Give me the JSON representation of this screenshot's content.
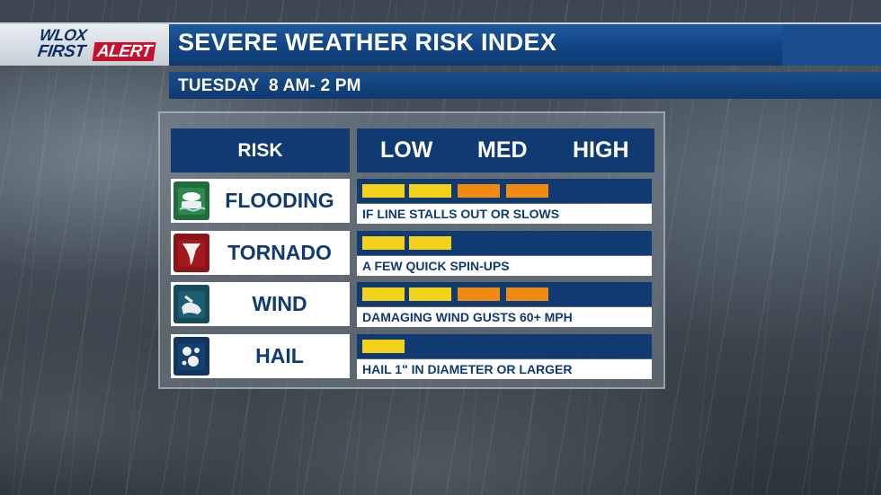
{
  "logo": {
    "wlox": "WLOX",
    "first": "FIRST",
    "alert": "ALERT"
  },
  "header": {
    "title": "SEVERE WEATHER RISK INDEX",
    "subtitle": "TUESDAY  8 AM- 2 PM"
  },
  "table": {
    "risk_header": "RISK",
    "levels": [
      "LOW",
      "MED",
      "HIGH"
    ],
    "colors": {
      "low": "#f2d21b",
      "med": "#f08a10",
      "bar_bg": "#103b72",
      "header_bg": "#103b72"
    },
    "rows": [
      {
        "label": "FLOODING",
        "icon": "flood-icon",
        "level_segments": 4,
        "description": "IF LINE STALLS OUT OR SLOWS"
      },
      {
        "label": "TORNADO",
        "icon": "tornado-icon",
        "level_segments": 2,
        "description": "A FEW QUICK SPIN-UPS"
      },
      {
        "label": "WIND",
        "icon": "wind-icon",
        "level_segments": 4,
        "description": "DAMAGING WIND GUSTS 60+ MPH"
      },
      {
        "label": "HAIL",
        "icon": "hail-icon",
        "level_segments": 1,
        "description": "HAIL 1\" IN DIAMETER OR LARGER"
      }
    ]
  }
}
